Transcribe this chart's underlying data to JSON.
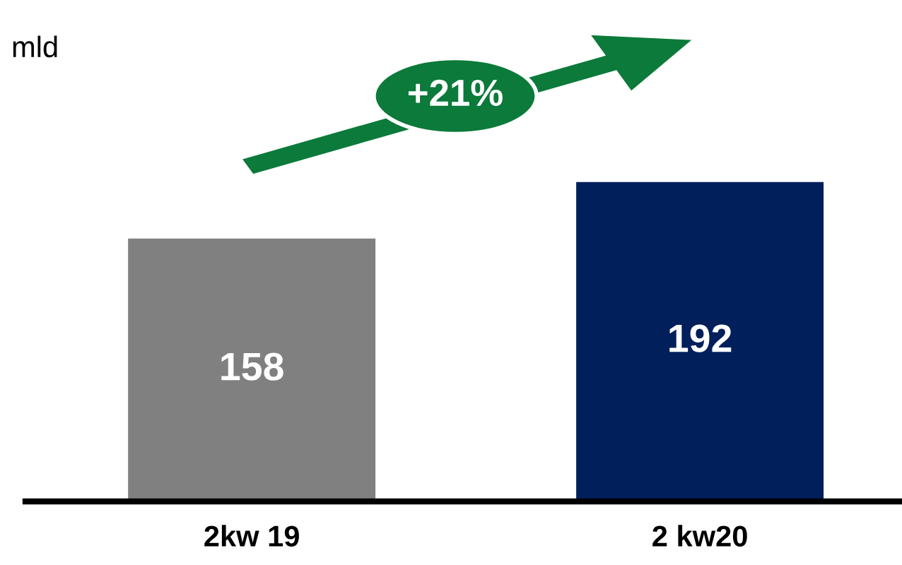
{
  "chart_data": {
    "type": "bar",
    "ylabel": "mld",
    "categories": [
      "2kw 19",
      "2 kw20"
    ],
    "values": [
      158,
      192
    ],
    "colors": [
      "#808080",
      "#001f5b"
    ],
    "data_labels": true,
    "annotations": [
      "+21%"
    ],
    "grid": false,
    "legend": false
  }
}
